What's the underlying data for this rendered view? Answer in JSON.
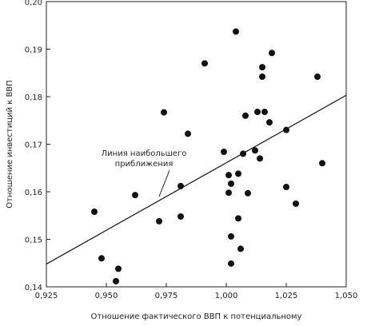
{
  "chart_data": {
    "type": "scatter",
    "title": "",
    "xlabel": "Отношение фактического ВВП к потенциальному",
    "ylabel": "Отношение инвестиций к ВВП",
    "xlim": [
      0.925,
      1.05
    ],
    "ylim": [
      0.14,
      0.2
    ],
    "x_ticks": [
      0.925,
      0.95,
      0.975,
      1.0,
      1.025,
      1.05
    ],
    "x_tick_labels": [
      "0,925",
      "0,950",
      "0,975",
      "1,000",
      "1,025",
      "1,050"
    ],
    "y_ticks": [
      0.14,
      0.15,
      0.16,
      0.17,
      0.18,
      0.19,
      0.2
    ],
    "y_tick_labels": [
      "0,14",
      "0,15",
      "0,16",
      "0,17",
      "0,18",
      "0,19",
      "0,20"
    ],
    "grid": false,
    "points": [
      {
        "x": 0.945,
        "y": 0.1558
      },
      {
        "x": 0.948,
        "y": 0.146
      },
      {
        "x": 0.954,
        "y": 0.1412
      },
      {
        "x": 0.955,
        "y": 0.1438
      },
      {
        "x": 0.962,
        "y": 0.1593
      },
      {
        "x": 0.972,
        "y": 0.1538
      },
      {
        "x": 0.974,
        "y": 0.1767
      },
      {
        "x": 0.981,
        "y": 0.1548
      },
      {
        "x": 0.981,
        "y": 0.1612
      },
      {
        "x": 0.984,
        "y": 0.1722
      },
      {
        "x": 0.991,
        "y": 0.187
      },
      {
        "x": 0.999,
        "y": 0.1684
      },
      {
        "x": 1.001,
        "y": 0.1635
      },
      {
        "x": 1.001,
        "y": 0.1598
      },
      {
        "x": 1.002,
        "y": 0.1617
      },
      {
        "x": 1.002,
        "y": 0.1506
      },
      {
        "x": 1.002,
        "y": 0.1449
      },
      {
        "x": 1.004,
        "y": 0.1937
      },
      {
        "x": 1.005,
        "y": 0.1638
      },
      {
        "x": 1.005,
        "y": 0.1544
      },
      {
        "x": 1.006,
        "y": 0.148
      },
      {
        "x": 1.007,
        "y": 0.168
      },
      {
        "x": 1.008,
        "y": 0.176
      },
      {
        "x": 1.009,
        "y": 0.1597
      },
      {
        "x": 1.012,
        "y": 0.1687
      },
      {
        "x": 1.013,
        "y": 0.1768
      },
      {
        "x": 1.014,
        "y": 0.167
      },
      {
        "x": 1.015,
        "y": 0.1862
      },
      {
        "x": 1.015,
        "y": 0.1842
      },
      {
        "x": 1.016,
        "y": 0.1768
      },
      {
        "x": 1.018,
        "y": 0.1746
      },
      {
        "x": 1.019,
        "y": 0.1892
      },
      {
        "x": 1.025,
        "y": 0.173
      },
      {
        "x": 1.025,
        "y": 0.161
      },
      {
        "x": 1.029,
        "y": 0.1575
      },
      {
        "x": 1.038,
        "y": 0.1842
      },
      {
        "x": 1.04,
        "y": 0.166
      }
    ],
    "fit_line": {
      "x": [
        0.925,
        1.05
      ],
      "y": [
        0.1448,
        0.1803
      ]
    },
    "annotation": {
      "line1": "Линия наибольшего",
      "line2": "приближения"
    },
    "colors": {
      "points": "#111111",
      "line": "#111111",
      "axes": "#222222"
    }
  }
}
